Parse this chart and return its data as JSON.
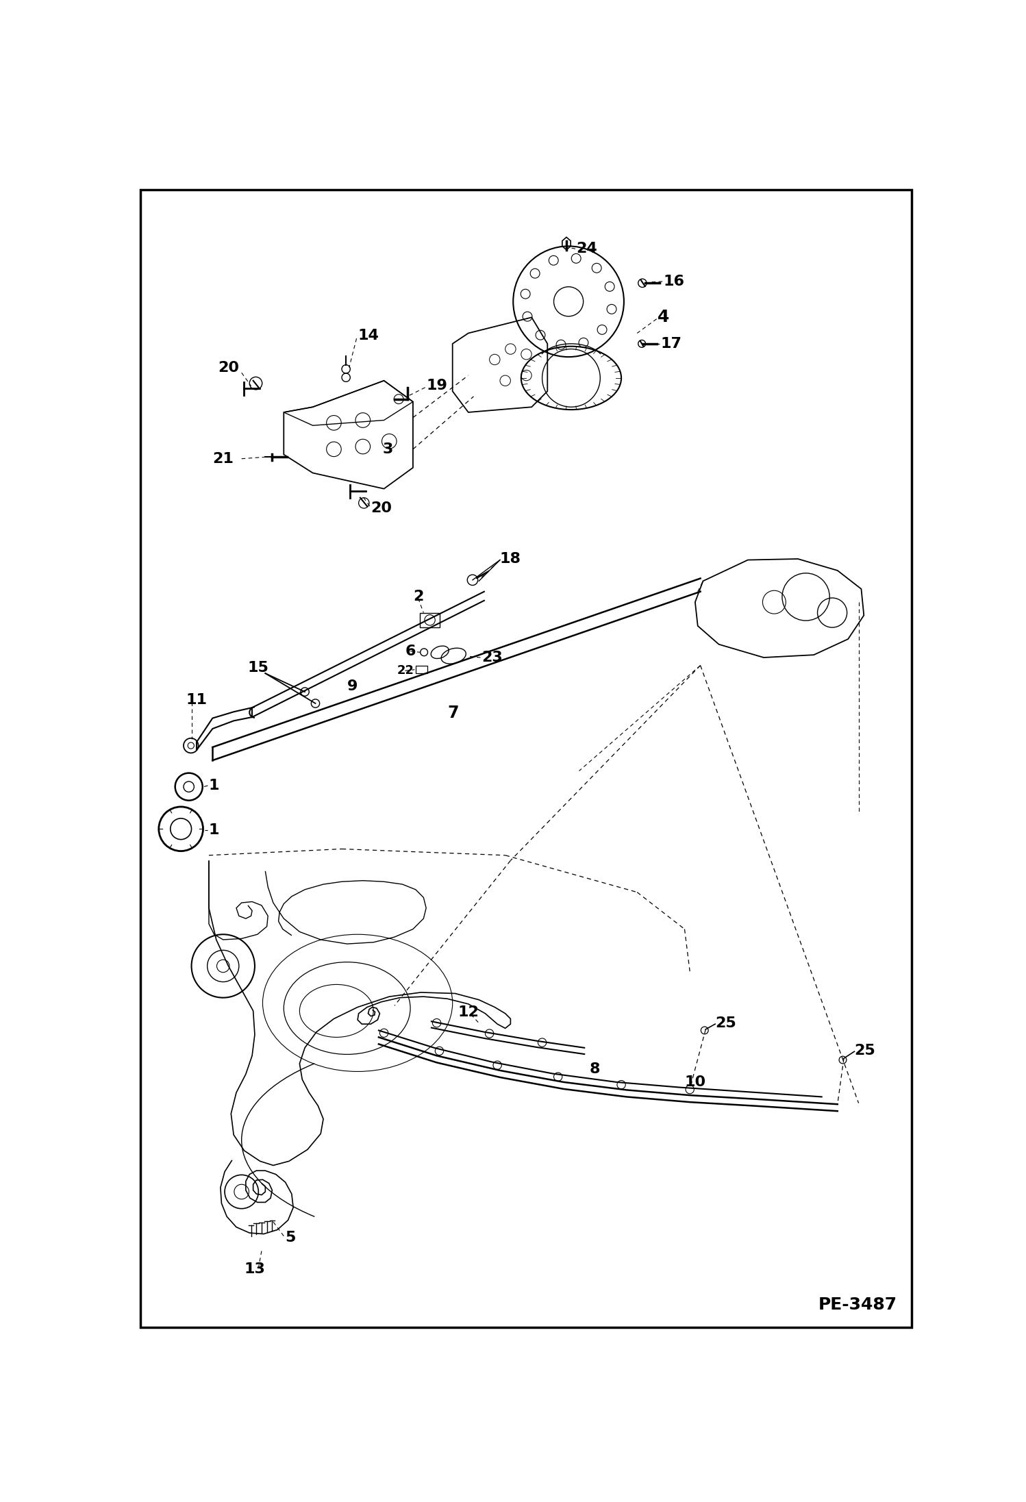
{
  "bg_color": "#ffffff",
  "lc": "#000000",
  "figsize": [
    14.98,
    21.93
  ],
  "dpi": 100,
  "watermark": "PE-3487",
  "lw": 1.3,
  "lw_t": 0.7,
  "fs": 16,
  "fs_s": 13
}
